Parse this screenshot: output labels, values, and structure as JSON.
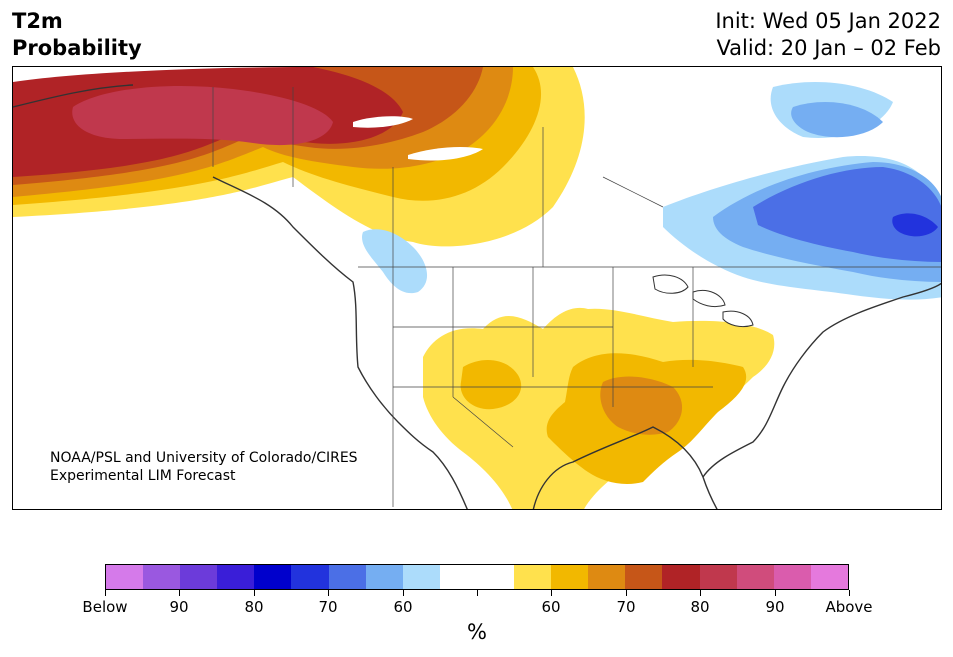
{
  "header": {
    "title_line1": "T2m",
    "title_line2": "Probability",
    "init": "Init: Wed 05 Jan 2022",
    "valid": "Valid: 20 Jan – 02 Feb"
  },
  "map": {
    "credit_line1": "NOAA/PSL and University of Colorado/CIRES",
    "credit_line2": "Experimental LIM Forecast"
  },
  "colorbar": {
    "colors": [
      "#d57aea",
      "#9a58e0",
      "#6c3bda",
      "#3a1ed8",
      "#0000cc",
      "#2233dd",
      "#4b6fe6",
      "#75aef2",
      "#acdcfb",
      "#ffffff",
      "#ffffff",
      "#ffe14d",
      "#f2b800",
      "#de8a12",
      "#c65618",
      "#b02326",
      "#c0384d",
      "#d04c7c",
      "#da5cad",
      "#e579dd"
    ],
    "labels": [
      "Below",
      "90",
      "80",
      "70",
      "60",
      "",
      "60",
      "70",
      "80",
      "90",
      "Above"
    ],
    "unit": "%"
  }
}
